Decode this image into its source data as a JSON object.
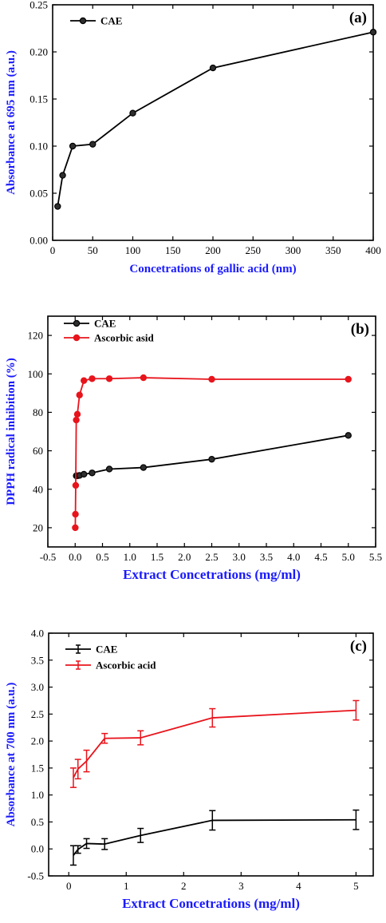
{
  "colors": {
    "axis": "#000000",
    "series_cae": "#000000",
    "series_ascorbic": "#e8141c",
    "label_blue": "#1a1aff"
  },
  "chart_data": [
    {
      "type": "line",
      "panel_label": "(a)",
      "xlabel": "Concetrations of gallic acid (nm)",
      "ylabel": "Absorbance at 695 nm (a.u.)",
      "xlim": [
        0,
        400
      ],
      "ylim": [
        0.0,
        0.25
      ],
      "xticks": [
        0,
        50,
        100,
        150,
        200,
        250,
        300,
        350,
        400
      ],
      "yticks": [
        0.0,
        0.05,
        0.1,
        0.15,
        0.2,
        0.25
      ],
      "xtick_labels": [
        "0",
        "50",
        "100",
        "150",
        "200",
        "250",
        "300",
        "350",
        "400"
      ],
      "ytick_labels": [
        "0.00",
        "0.05",
        "0.10",
        "0.15",
        "0.20",
        "0.25"
      ],
      "legend_position": "top-left",
      "series": [
        {
          "name": "CAE",
          "color": "#000000",
          "x": [
            6.25,
            12.5,
            25,
            50,
            100,
            200,
            400
          ],
          "y": [
            0.036,
            0.069,
            0.1,
            0.102,
            0.135,
            0.183,
            0.221
          ]
        }
      ]
    },
    {
      "type": "line",
      "panel_label": "(b)",
      "xlabel": "Extract Concetrations  (mg/ml)",
      "ylabel": "DPPH radical inhibition (%)",
      "xlim": [
        -0.5,
        5.5
      ],
      "ylim": [
        10,
        130
      ],
      "xticks": [
        -0.5,
        0.0,
        0.5,
        1.0,
        1.5,
        2.0,
        2.5,
        3.0,
        3.5,
        4.0,
        4.5,
        5.0,
        5.5
      ],
      "yticks": [
        20,
        40,
        60,
        80,
        100,
        120
      ],
      "xtick_labels": [
        "-0.5",
        "0.0",
        "0.5",
        "1.0",
        "1.5",
        "2.0",
        "2.5",
        "3.0",
        "3.5",
        "4.0",
        "4.5",
        "5.0",
        "5.5"
      ],
      "ytick_labels": [
        "20",
        "40",
        "60",
        "80",
        "100",
        "120"
      ],
      "legend_position": "top-left",
      "series": [
        {
          "name": "CAE",
          "color": "#000000",
          "x": [
            0.02,
            0.04,
            0.08,
            0.16,
            0.31,
            0.625,
            1.25,
            2.5,
            5.0
          ],
          "y": [
            47,
            47,
            47.2,
            47.8,
            48.5,
            50.5,
            51.3,
            55.6,
            68
          ]
        },
        {
          "name": "Ascorbic asid",
          "color": "#e8141c",
          "x": [
            0.002,
            0.005,
            0.01,
            0.02,
            0.04,
            0.08,
            0.16,
            0.31,
            0.625,
            1.25,
            2.5,
            5.0
          ],
          "y": [
            20,
            27,
            42,
            76,
            79,
            89,
            96.5,
            97.5,
            97.5,
            98,
            97.2,
            97.2
          ]
        }
      ]
    },
    {
      "type": "line",
      "panel_label": "(c)",
      "xlabel": "Extract Concetrations  (mg/ml)",
      "ylabel": "Absorbance at 700 nm (a.u.)",
      "xlim": [
        -0.35,
        5.3
      ],
      "ylim": [
        -0.5,
        4.0
      ],
      "xticks": [
        0,
        1,
        2,
        3,
        4,
        5
      ],
      "yticks": [
        -0.5,
        0.0,
        0.5,
        1.0,
        1.5,
        2.0,
        2.5,
        3.0,
        3.5,
        4.0
      ],
      "xtick_labels": [
        "0",
        "1",
        "2",
        "3",
        "4",
        "5"
      ],
      "ytick_labels": [
        "-0.5",
        "0.0",
        "0.5",
        "1.0",
        "1.5",
        "2.0",
        "2.5",
        "3.0",
        "3.5",
        "4.0"
      ],
      "legend_position": "top-left",
      "series": [
        {
          "name": "CAE",
          "color": "#000000",
          "x": [
            0.08,
            0.16,
            0.31,
            0.625,
            1.25,
            2.5,
            5.0
          ],
          "y": [
            -0.12,
            -0.01,
            0.1,
            0.09,
            0.25,
            0.53,
            0.54
          ],
          "err": [
            0.18,
            0.07,
            0.09,
            0.1,
            0.13,
            0.18,
            0.18
          ]
        },
        {
          "name": "Ascorbic acid",
          "color": "#e8141c",
          "x": [
            0.08,
            0.16,
            0.31,
            0.625,
            1.25,
            2.5,
            5.0
          ],
          "y": [
            1.32,
            1.48,
            1.63,
            2.05,
            2.06,
            2.43,
            2.57
          ],
          "err": [
            0.18,
            0.18,
            0.2,
            0.09,
            0.13,
            0.17,
            0.18
          ]
        }
      ]
    }
  ]
}
